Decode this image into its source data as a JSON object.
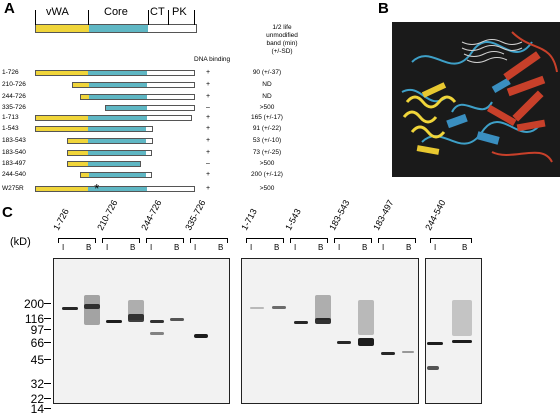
{
  "panels": {
    "a": "A",
    "b": "B",
    "c": "C"
  },
  "domains": {
    "vwa": "vWA",
    "core": "Core",
    "ct": "CT",
    "pk": "PK"
  },
  "columns": {
    "dna_binding": "DNA binding",
    "half_life": [
      "1/2 life",
      "unmodified",
      "band (min)",
      "(+/-SD)"
    ]
  },
  "constructs": [
    {
      "name": "1-726",
      "dna": "+",
      "half": "90 (+/-37)",
      "y": 0,
      "c": 1,
      "s": 0.0,
      "e": 1.0
    },
    {
      "name": "210-726",
      "dna": "+",
      "half": "ND",
      "s": 0.23,
      "e": 1.0
    },
    {
      "name": "244-726",
      "dna": "+",
      "half": "ND",
      "s": 0.28,
      "e": 1.0
    },
    {
      "name": "335-726",
      "dna": "–",
      "half": ">500",
      "s": 0.44,
      "e": 1.0
    },
    {
      "name": "1-713",
      "dna": "+",
      "half": "165 (+/-17)",
      "s": 0.0,
      "e": 0.98
    },
    {
      "name": "1-543",
      "dna": "+",
      "half": "91 (+/-22)",
      "s": 0.0,
      "e": 0.74
    },
    {
      "name": "183-543",
      "dna": "+",
      "half": "53 (+/-10)",
      "s": 0.2,
      "e": 0.74
    },
    {
      "name": "183-540",
      "dna": "+",
      "half": "73 (+/-25)",
      "s": 0.2,
      "e": 0.73
    },
    {
      "name": "183-497",
      "dna": "–",
      "half": ">500",
      "s": 0.2,
      "e": 0.66
    },
    {
      "name": "244-540",
      "dna": "+",
      "half": "200 (+/-12)",
      "s": 0.28,
      "e": 0.73
    },
    {
      "name": "W275R",
      "dna": "+",
      "half": ">500",
      "s": 0.0,
      "e": 1.0
    }
  ],
  "mutation_mark": "*",
  "gel": {
    "unit": "(kD)",
    "markers": [
      "200",
      "116",
      "97",
      "66",
      "45",
      "32",
      "22",
      "14"
    ],
    "lane_groups_1": [
      "1-726",
      "210-726",
      "244-726",
      "335-726"
    ],
    "lane_groups_2": [
      "1-713",
      "1-543",
      "183-543",
      "183-497"
    ],
    "lane_groups_3": [
      "244-540"
    ],
    "lane_i": "I",
    "lane_b": "B"
  }
}
